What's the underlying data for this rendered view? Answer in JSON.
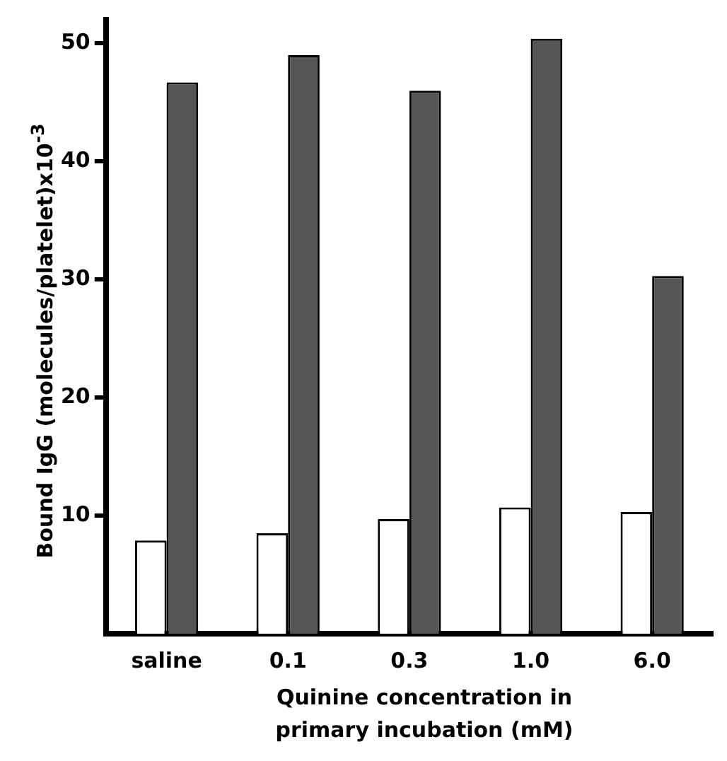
{
  "chart_data": {
    "type": "bar",
    "xlabel": "Quinine concentration in primary incubation (mM)",
    "ylabel": "Bound IgG (molecules/platelet)x10$^{-3}$",
    "categories": [
      "saline",
      "0.1",
      "0.3",
      "1.0",
      "6.0"
    ],
    "series": [
      {
        "color": "#ffffff",
        "values": [
          7.9,
          8.5,
          9.7,
          10.7,
          10.3
        ]
      },
      {
        "color": "#555555",
        "values": [
          46.7,
          49.0,
          46.0,
          50.4,
          30.3
        ]
      }
    ],
    "ylim": [
      0,
      52
    ],
    "yticks": [
      10,
      20,
      30,
      40,
      50
    ],
    "grid": false,
    "legend": false
  }
}
